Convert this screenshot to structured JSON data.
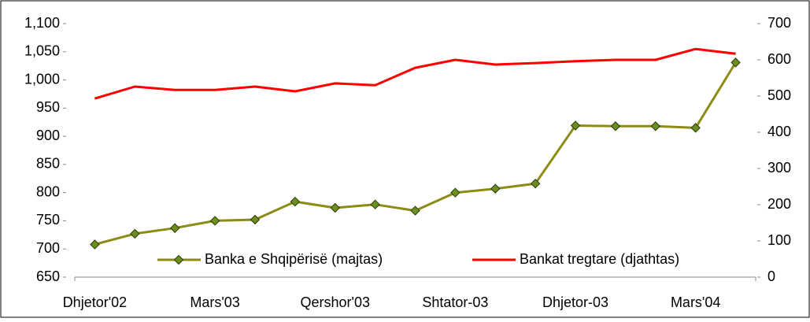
{
  "chart_data": {
    "type": "line",
    "categories": [
      "Dhjetor'02",
      null,
      null,
      "Mars'03",
      null,
      null,
      "Qershor'03",
      null,
      null,
      "Shtator-03",
      null,
      null,
      "Dhjetor-03",
      null,
      null,
      "Mars'04",
      null
    ],
    "series": [
      {
        "name": "Banka e Shqipërisë (majtas)",
        "color": "#8c8c14",
        "marker_color": "#6b8e23",
        "axis": "y",
        "values": [
          708,
          727,
          737,
          750,
          752,
          784,
          773,
          779,
          768,
          800,
          807,
          816,
          919,
          918,
          918,
          915,
          1031
        ]
      },
      {
        "name": "Bankat tregtare (djathtas)",
        "color": "#ff0000",
        "axis": "y2",
        "values": [
          493,
          526,
          517,
          517,
          526,
          513,
          535,
          530,
          578,
          600,
          587,
          591,
          596,
          600,
          600,
          630,
          617
        ]
      }
    ],
    "ylim": [
      650,
      1100
    ],
    "yticks": [
      650,
      700,
      750,
      800,
      850,
      900,
      950,
      {
        "value": 1000,
        "label": "1,000"
      },
      {
        "value": 1050,
        "label": "1,050"
      },
      {
        "value": 1100,
        "label": "1,100"
      }
    ],
    "y2lim": [
      0,
      700
    ],
    "y2ticks": [
      0,
      100,
      200,
      300,
      400,
      500,
      600,
      700
    ],
    "legend": "bottom"
  }
}
